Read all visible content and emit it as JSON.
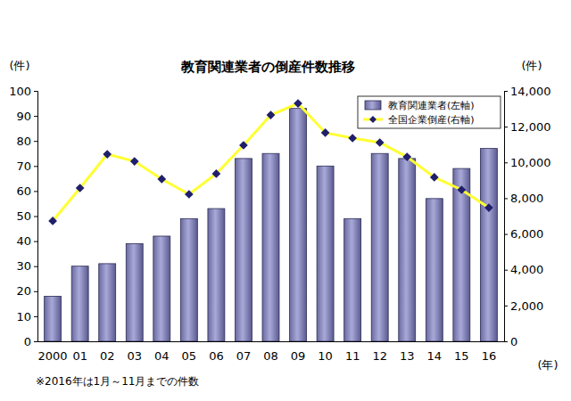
{
  "chart_data": {
    "type": "bar",
    "title": "教育関連業者の倒産件数推移",
    "y_label": "(件)",
    "y2_label": "(件)",
    "x_label": "(年)",
    "note": "※2016年は1月～11月までの件数",
    "categories": [
      "2000",
      "01",
      "02",
      "03",
      "04",
      "05",
      "06",
      "07",
      "08",
      "09",
      "10",
      "11",
      "12",
      "13",
      "14",
      "15",
      "16"
    ],
    "series": [
      {
        "name": "教育関連業者(左軸)",
        "type": "bar",
        "color": "#a9a9d9",
        "values": [
          18,
          30,
          31,
          39,
          42,
          49,
          53,
          73,
          75,
          93,
          70,
          49,
          75,
          73,
          57,
          69,
          77
        ]
      },
      {
        "name": "全国企業倒産(右軸)",
        "type": "line",
        "axis": "y2",
        "color": "#ffff33",
        "marker": "diamond",
        "values": [
          6730,
          8570,
          10460,
          10060,
          9070,
          8220,
          9370,
          10960,
          12650,
          13300,
          11660,
          11360,
          11110,
          10310,
          9170,
          8470,
          7470
        ]
      }
    ],
    "ylim": [
      0,
      100
    ],
    "yticks": [
      0,
      10,
      20,
      30,
      40,
      50,
      60,
      70,
      80,
      90,
      100
    ],
    "y2lim": [
      0,
      14000
    ],
    "y2ticks": [
      0,
      {
        "value": 2000,
        "label": "2,000"
      },
      {
        "value": 4000,
        "label": "4,000"
      },
      {
        "value": 6000,
        "label": "6,000"
      },
      {
        "value": 8000,
        "label": "8,000"
      },
      {
        "value": 10000,
        "label": "10,000"
      },
      {
        "value": 12000,
        "label": "12,000"
      },
      {
        "value": 14000,
        "label": "14,000"
      }
    ],
    "legend": "upper right",
    "grid": false
  }
}
